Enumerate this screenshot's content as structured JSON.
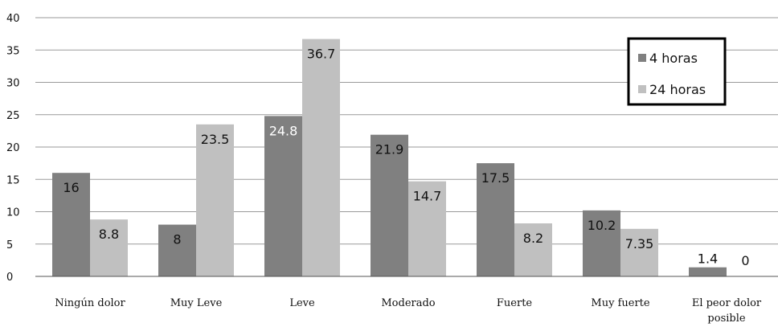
{
  "chart_data": {
    "type": "bar",
    "categories": [
      "Ningún dolor",
      "Muy Leve",
      "Leve",
      "Moderado",
      "Fuerte",
      "Muy fuerte",
      "El peor dolor posible"
    ],
    "series": [
      {
        "name": "4 horas",
        "values": [
          16,
          8,
          24.8,
          21.9,
          17.5,
          10.2,
          1.4
        ],
        "labels": [
          "16",
          "8",
          "24.8",
          "21.9",
          "17.5",
          "10.2",
          "1.4"
        ],
        "color": "#808080"
      },
      {
        "name": "24 horas",
        "values": [
          8.8,
          23.5,
          36.7,
          14.7,
          8.2,
          7.35,
          0
        ],
        "labels": [
          "8.8",
          "23.5",
          "36.7",
          "14.7",
          "8.2",
          "7.35",
          "0"
        ],
        "color": "#c0c0c0"
      }
    ],
    "yticks": [
      "0",
      "5",
      "10",
      "15",
      "20",
      "25",
      "30",
      "35",
      "40"
    ],
    "ylim": [
      0,
      40
    ],
    "grid": true,
    "legend_position": "top-right",
    "title": "",
    "xlabel": "",
    "ylabel": ""
  }
}
